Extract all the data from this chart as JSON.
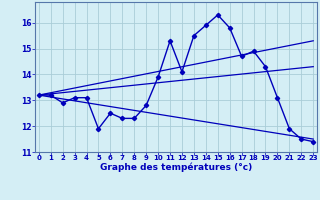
{
  "title": "Graphe des températures (°c)",
  "bg_color": "#d4eef5",
  "line_color": "#0000bb",
  "x_ticks": [
    0,
    1,
    2,
    3,
    4,
    5,
    6,
    7,
    8,
    9,
    10,
    11,
    12,
    13,
    14,
    15,
    16,
    17,
    18,
    19,
    20,
    21,
    22,
    23
  ],
  "ylim": [
    11.0,
    16.8
  ],
  "yticks": [
    11,
    12,
    13,
    14,
    15,
    16
  ],
  "xlim": [
    -0.3,
    23.3
  ],
  "actual_x": [
    0,
    1,
    2,
    3,
    4,
    5,
    6,
    7,
    8,
    9,
    10,
    11,
    12,
    13,
    14,
    15,
    16,
    17,
    18,
    19,
    20,
    21,
    22,
    23
  ],
  "actual_y": [
    13.2,
    13.2,
    12.9,
    13.1,
    13.1,
    11.9,
    12.5,
    12.3,
    12.3,
    12.8,
    13.9,
    15.3,
    14.1,
    15.5,
    15.9,
    16.3,
    15.8,
    14.7,
    14.9,
    14.3,
    13.1,
    11.9,
    11.5,
    11.4
  ],
  "trend1_x": [
    0,
    23
  ],
  "trend1_y": [
    13.2,
    15.3
  ],
  "trend2_x": [
    0,
    23
  ],
  "trend2_y": [
    13.2,
    14.3
  ],
  "trend3_x": [
    0,
    23
  ],
  "trend3_y": [
    13.2,
    11.5
  ],
  "grid_color": "#aacdd8",
  "spine_color": "#5577aa",
  "tick_fontsize": 5.0,
  "label_fontsize": 6.5,
  "ylabel_labels": [
    "11",
    "12",
    "13",
    "14",
    "15",
    "16"
  ]
}
